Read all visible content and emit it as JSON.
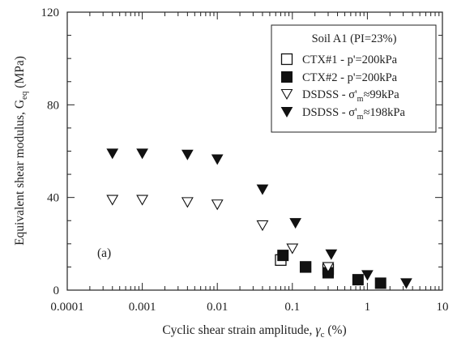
{
  "chart_data": {
    "type": "scatter",
    "xscale": "log",
    "xlim": [
      0.0001,
      10
    ],
    "ylim": [
      0,
      120
    ],
    "xticks": [
      0.0001,
      0.001,
      0.01,
      0.1,
      1,
      10
    ],
    "xtick_labels": [
      "0.0001",
      "0.001",
      "0.01",
      "0.1",
      "1",
      "10"
    ],
    "yticks": [
      0,
      40,
      80,
      120
    ],
    "ytick_labels": [
      "0",
      "40",
      "80",
      "120"
    ],
    "xlabel": "Cyclic shear strain amplitude, γc (%)",
    "xlabel_main": "Cyclic shear strain amplitude, ",
    "xlabel_symbol": "γ",
    "xlabel_sub": "c",
    "xlabel_tail": " (%)",
    "ylabel": "Equivalent shear modulus, Geq (MPa)",
    "ylabel_main": "Equivalent shear modulus, G",
    "ylabel_sub": "eq",
    "ylabel_tail": " (MPa)",
    "panel_label": "(a)",
    "grid": false,
    "legend": {
      "placement": "top-right",
      "title": "Soil A1 (PI=23%)"
    },
    "series": [
      {
        "name": "CTX#1 - p'=200kPa",
        "legend_main": "CTX#1 - p'=200kPa",
        "marker": "square-open",
        "color": "#111111",
        "x": [
          0.07,
          0.15,
          0.3
        ],
        "y": [
          13,
          10,
          9
        ]
      },
      {
        "name": "CTX#2 - p'=200kPa",
        "legend_main": "CTX#2 - p'=200kPa",
        "marker": "square-filled",
        "color": "#111111",
        "x": [
          0.075,
          0.15,
          0.3,
          0.75,
          1.5
        ],
        "y": [
          15,
          10,
          7.5,
          4.5,
          3
        ]
      },
      {
        "name": "DSDSS - σ'm≈99kPa",
        "legend_prefix": "DSDSS - σ'",
        "legend_sub": "m",
        "legend_suffix": "≈99kPa",
        "marker": "triangle-down-open",
        "color": "#111111",
        "x": [
          0.0004,
          0.001,
          0.004,
          0.01,
          0.04,
          0.1,
          0.3
        ],
        "y": [
          39,
          39,
          38,
          37,
          28,
          18,
          10
        ]
      },
      {
        "name": "DSDSS - σ'm≈198kPa",
        "legend_prefix": "DSDSS - σ'",
        "legend_sub": "m",
        "legend_suffix": "≈198kPa",
        "marker": "triangle-down-filled",
        "color": "#111111",
        "x": [
          0.0004,
          0.001,
          0.004,
          0.01,
          0.04,
          0.11,
          0.33,
          1,
          3.3
        ],
        "y": [
          59,
          59,
          58.5,
          56.5,
          43.5,
          29,
          15.5,
          6.5,
          3
        ]
      }
    ]
  }
}
